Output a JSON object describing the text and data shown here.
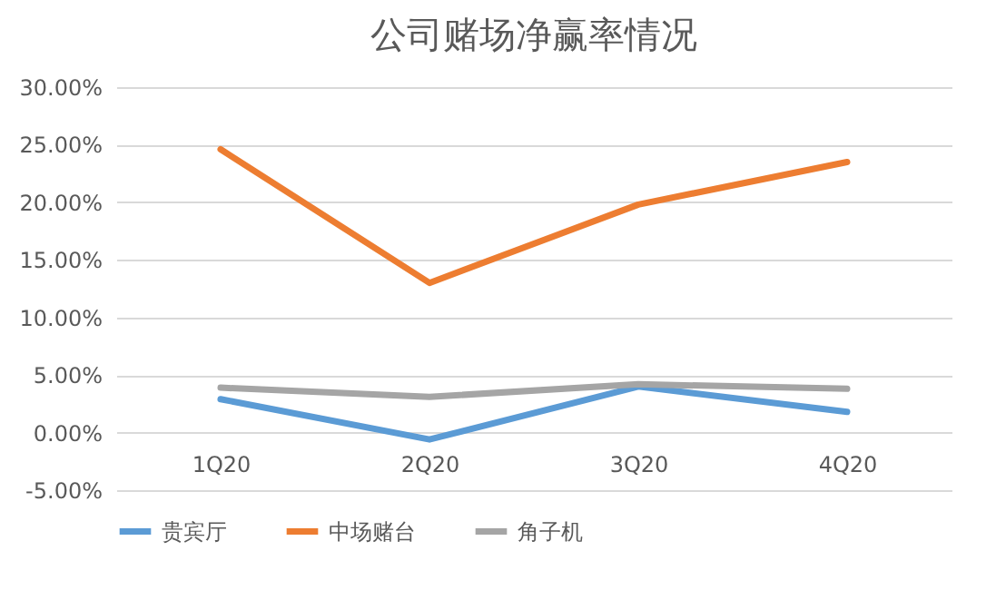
{
  "chart_data": {
    "type": "line",
    "title": "公司赌场净赢率情况",
    "categories": [
      "1Q20",
      "2Q20",
      "3Q20",
      "4Q20"
    ],
    "series": [
      {
        "name": "贵宾厅",
        "color": "#5b9bd5",
        "values": [
          2.9,
          -0.6,
          4.0,
          1.8
        ]
      },
      {
        "name": "中场赌台",
        "color": "#ed7d31",
        "values": [
          24.6,
          13.0,
          19.8,
          23.5
        ]
      },
      {
        "name": "角子机",
        "color": "#a5a5a5",
        "values": [
          3.9,
          3.1,
          4.2,
          3.8
        ]
      }
    ],
    "ylim": [
      -5,
      30
    ],
    "yticks": [
      {
        "value": -5,
        "label": "-5.00%"
      },
      {
        "value": 0,
        "label": "0.00%"
      },
      {
        "value": 5,
        "label": "5.00%"
      },
      {
        "value": 10,
        "label": "10.00%"
      },
      {
        "value": 15,
        "label": "15.00%"
      },
      {
        "value": 20,
        "label": "20.00%"
      },
      {
        "value": 25,
        "label": "25.00%"
      },
      {
        "value": 30,
        "label": "30.00%"
      }
    ],
    "grid": "y",
    "legend": "bottom",
    "marker": "none",
    "line_style": "solid"
  }
}
